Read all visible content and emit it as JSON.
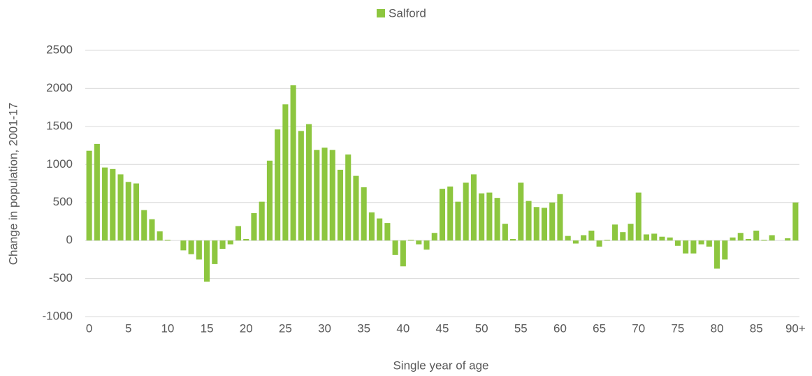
{
  "chart_data": {
    "type": "bar",
    "legend": "Salford",
    "y_label": "Change in population, 2001-17",
    "x_label": "Single year of age",
    "color": "#8dc63f",
    "categories": [
      "0",
      null,
      null,
      null,
      null,
      "5",
      null,
      null,
      null,
      null,
      "10",
      null,
      null,
      null,
      null,
      "15",
      null,
      null,
      null,
      null,
      "20",
      null,
      null,
      null,
      null,
      "25",
      null,
      null,
      null,
      null,
      "30",
      null,
      null,
      null,
      null,
      "35",
      null,
      null,
      null,
      null,
      "40",
      null,
      null,
      null,
      null,
      "45",
      null,
      null,
      null,
      null,
      "50",
      null,
      null,
      null,
      null,
      "55",
      null,
      null,
      null,
      null,
      "60",
      null,
      null,
      null,
      null,
      "65",
      null,
      null,
      null,
      null,
      "70",
      null,
      null,
      null,
      null,
      "75",
      null,
      null,
      null,
      null,
      "80",
      null,
      null,
      null,
      null,
      "85",
      null,
      null,
      null,
      null,
      "90+"
    ],
    "values": [
      1180,
      1270,
      960,
      940,
      870,
      770,
      750,
      400,
      280,
      120,
      10,
      0,
      -130,
      -180,
      -250,
      -540,
      -310,
      -110,
      -50,
      190,
      20,
      360,
      510,
      1050,
      1460,
      1790,
      2040,
      1440,
      1530,
      1190,
      1220,
      1190,
      930,
      1130,
      850,
      700,
      370,
      290,
      230,
      -190,
      -340,
      10,
      -50,
      -120,
      100,
      680,
      710,
      510,
      760,
      870,
      620,
      630,
      560,
      220,
      20,
      760,
      520,
      440,
      430,
      500,
      610,
      60,
      -40,
      70,
      130,
      -80,
      10,
      210,
      110,
      220,
      630,
      80,
      90,
      50,
      40,
      -70,
      -170,
      -170,
      -50,
      -80,
      -370,
      -250,
      40,
      100,
      20,
      130,
      10,
      70,
      0,
      30,
      500
    ],
    "ylim": [
      -1000,
      2500
    ],
    "yticks": [
      -1000,
      -500,
      0,
      500,
      1000,
      1500,
      2000,
      2500
    ],
    "grid": true
  }
}
